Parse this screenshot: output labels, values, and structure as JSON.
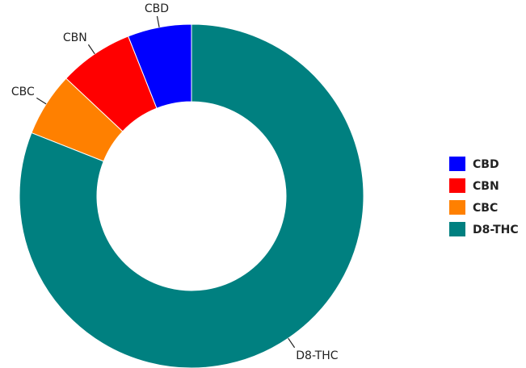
{
  "chart_data": {
    "type": "pie",
    "donut": true,
    "categories": [
      "CBD",
      "CBN",
      "CBC",
      "D8-THC"
    ],
    "values": [
      6,
      7,
      6,
      81
    ],
    "colors": [
      "#0000ff",
      "#ff0000",
      "#ff8000",
      "#008080"
    ],
    "legend": {
      "position": "right",
      "entries": [
        "CBD",
        "CBN",
        "CBC",
        "D8-THC"
      ]
    }
  }
}
